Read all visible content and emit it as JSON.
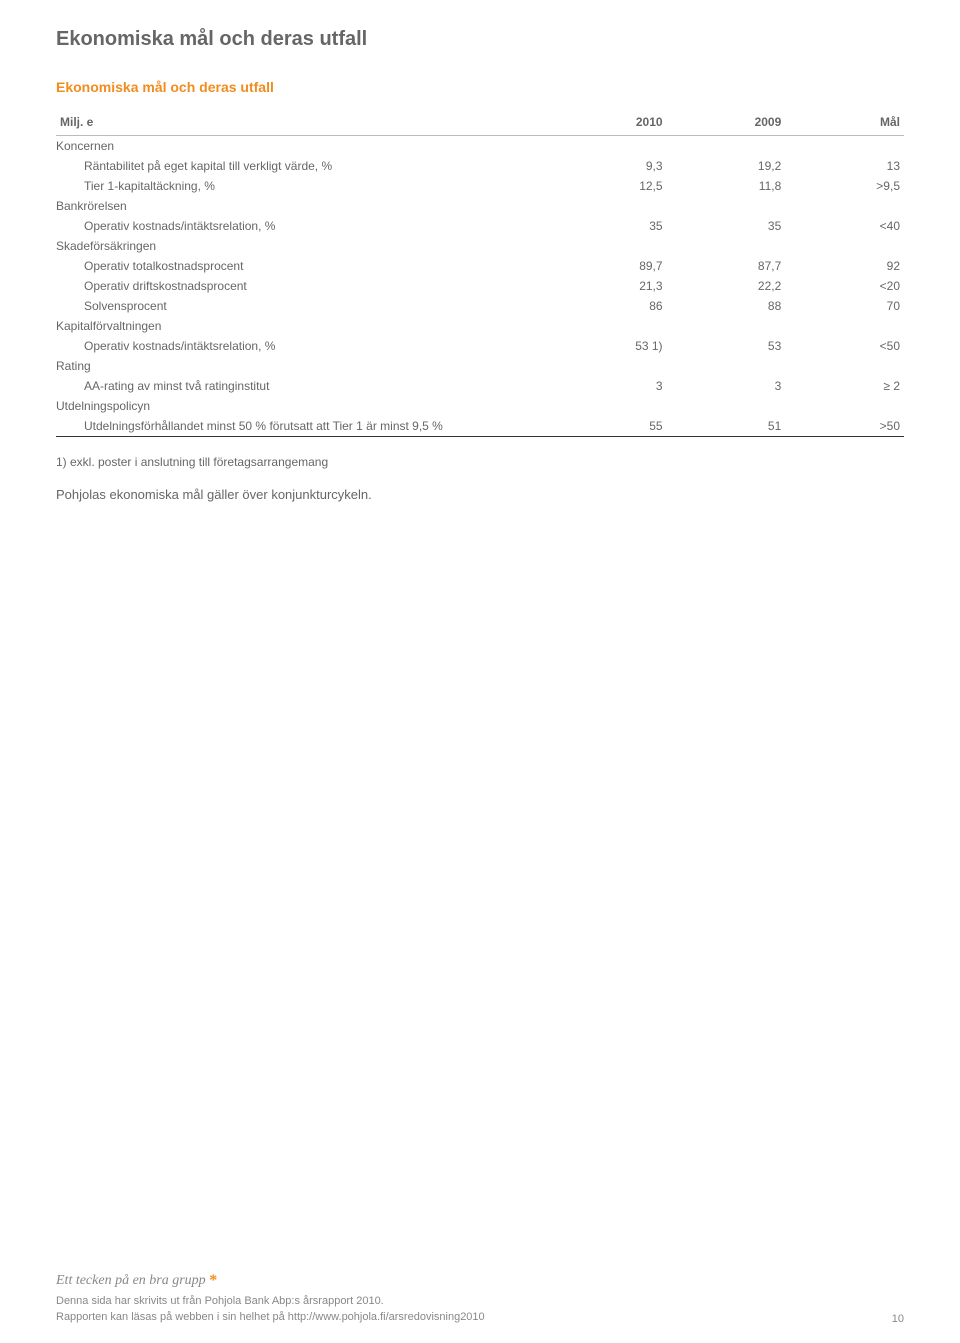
{
  "title_main": "Ekonomiska mål och deras utfall",
  "title_sub": "Ekonomiska mål och deras utfall",
  "table": {
    "headers": {
      "unit": "Milj. e",
      "c2010": "2010",
      "c2009": "2009",
      "cmal": "Mål"
    },
    "rows": [
      {
        "kind": "section",
        "label": "Koncernen"
      },
      {
        "kind": "data",
        "label": "Räntabilitet på eget kapital till verkligt värde, %",
        "v1": "9,3",
        "v2": "19,2",
        "v3": "13"
      },
      {
        "kind": "data",
        "label": "Tier 1-kapitaltäckning, %",
        "v1": "12,5",
        "v2": "11,8",
        "v3": ">9,5"
      },
      {
        "kind": "section",
        "label": "Bankrörelsen"
      },
      {
        "kind": "data",
        "label": "Operativ kostnads/intäktsrelation, %",
        "v1": "35",
        "v2": "35",
        "v3": "<40"
      },
      {
        "kind": "section",
        "label": "Skadeförsäkringen"
      },
      {
        "kind": "data",
        "label": "Operativ totalkostnadsprocent",
        "v1": "89,7",
        "v2": "87,7",
        "v3": "92"
      },
      {
        "kind": "data",
        "label": "Operativ driftskostnadsprocent",
        "v1": "21,3",
        "v2": "22,2",
        "v3": "<20"
      },
      {
        "kind": "data",
        "label": "Solvensprocent",
        "v1": "86",
        "v2": "88",
        "v3": "70"
      },
      {
        "kind": "section",
        "label": "Kapitalförvaltningen"
      },
      {
        "kind": "data",
        "label": "Operativ kostnads/intäktsrelation, %",
        "v1": "53 1)",
        "v2": "53",
        "v3": "<50"
      },
      {
        "kind": "section",
        "label": "Rating"
      },
      {
        "kind": "data",
        "label": "AA-rating av minst två ratinginstitut",
        "v1": "3",
        "v2": "3",
        "v3": "≥ 2"
      },
      {
        "kind": "section",
        "label": "Utdelningspolicyn"
      },
      {
        "kind": "data",
        "label": "Utdelningsförhållandet minst 50 % förutsatt att Tier 1 är minst 9,5 %",
        "v1": "55",
        "v2": "51",
        "v3": ">50",
        "last": true
      }
    ]
  },
  "footnote": "1) exkl. poster i anslutning till företagsarrangemang",
  "bodytext": "Pohjolas ekonomiska mål gäller över konjunkturcykeln.",
  "footer": {
    "slogan_text": "Ett tecken på en bra grupp ",
    "slogan_star": "*",
    "line1": "Denna sida har skrivits ut från Pohjola Bank Abp:s årsrapport 2010.",
    "line2": "Rapporten kan läsas på webben i sin helhet på http://www.pohjola.fi/arsredovisning2010",
    "page_number": "10"
  },
  "colors": {
    "accent": "#f28c1e",
    "text": "#666666",
    "footer_text": "#888888"
  }
}
